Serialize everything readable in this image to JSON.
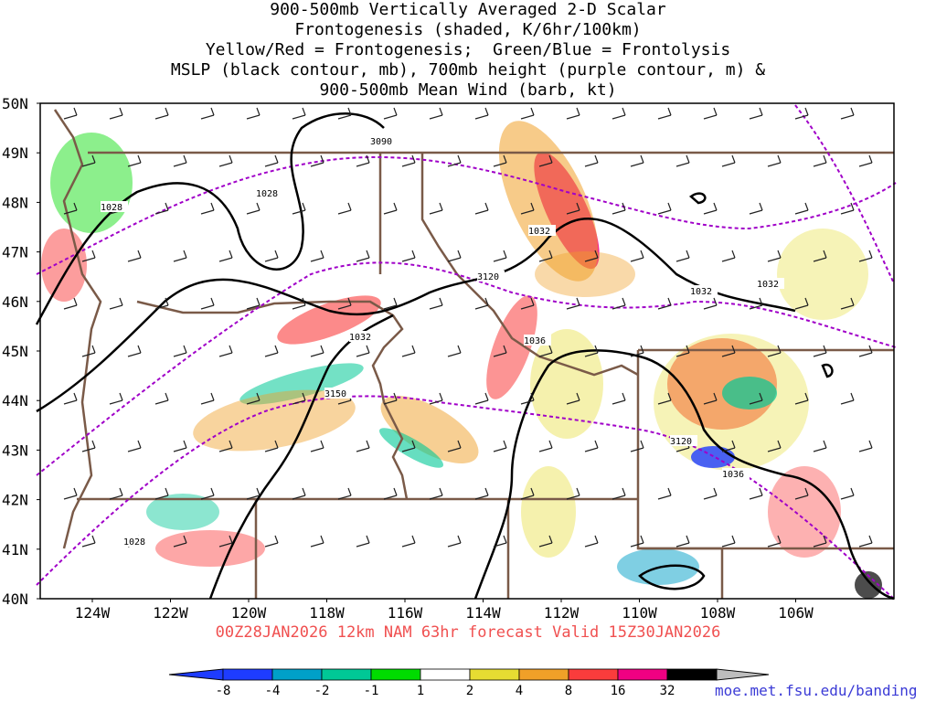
{
  "title": {
    "line1": "900-500mb Vertically Averaged 2-D Scalar",
    "line2": "Frontogenesis (shaded, K/6hr/100km)",
    "line3": "Yellow/Red = Frontogenesis;  Green/Blue = Frontolysis",
    "line4": "MSLP (black contour, mb), 700mb height (purple contour, m) &",
    "line5": "900-500mb Mean Wind (barb, kt)"
  },
  "footer": "00Z28JAN2026 12km NAM 63hr forecast Valid 15Z30JAN2026",
  "credit": "moe.met.fsu.edu/banding",
  "axes": {
    "lat_labels": [
      "50N",
      "49N",
      "48N",
      "47N",
      "46N",
      "45N",
      "44N",
      "43N",
      "42N",
      "41N",
      "40N"
    ],
    "lon_labels": [
      "124W",
      "122W",
      "120W",
      "118W",
      "116W",
      "114W",
      "112W",
      "110W",
      "108W",
      "106W"
    ]
  },
  "contour_labels": {
    "mslp": [
      "1028",
      "1028",
      "1032",
      "1032",
      "1036",
      "1032",
      "1032",
      "1036",
      "1028"
    ],
    "height": [
      "3090",
      "3120",
      "3150",
      "3120"
    ]
  },
  "colorbar": {
    "labels": [
      "-8",
      "-4",
      "-2",
      "-1",
      "1",
      "2",
      "4",
      "8",
      "16",
      "32"
    ],
    "colors": [
      "#1e3cff",
      "#00a0c8",
      "#00c896",
      "#00dc00",
      "#ffffff",
      "#e6dc32",
      "#f0a028",
      "#fa3c3c",
      "#f00082",
      "#000000"
    ]
  },
  "colors": {
    "mslp": "#000000",
    "height": "#a000c8",
    "borders": "#7a5a48",
    "footer": "#f05050",
    "credit": "#3b3bd6"
  }
}
